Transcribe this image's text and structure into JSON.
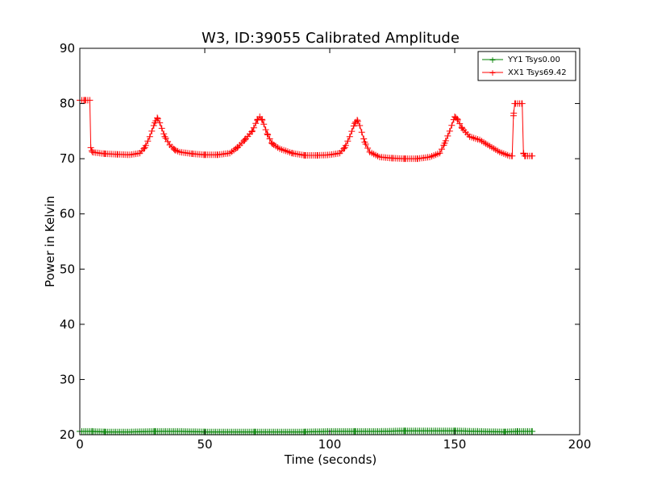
{
  "chart_data": {
    "type": "line",
    "title": "W3, ID:39055 Calibrated Amplitude",
    "xlabel": "Time (seconds)",
    "ylabel": "Power in Kelvin",
    "xlim": [
      0,
      200
    ],
    "ylim": [
      20,
      90
    ],
    "xticks": [
      "0",
      "50",
      "100",
      "150",
      "200"
    ],
    "yticks": [
      "20",
      "30",
      "40",
      "50",
      "60",
      "70",
      "80",
      "90"
    ],
    "grid": false,
    "legend_position": "top-right",
    "series": [
      {
        "name": "YY1 Tsys0.00",
        "color": "#008000",
        "marker": "+",
        "points": [
          [
            0,
            20.6
          ],
          [
            5,
            20.6
          ],
          [
            10,
            20.5
          ],
          [
            20,
            20.5
          ],
          [
            30,
            20.6
          ],
          [
            40,
            20.6
          ],
          [
            50,
            20.5
          ],
          [
            60,
            20.5
          ],
          [
            70,
            20.5
          ],
          [
            80,
            20.5
          ],
          [
            90,
            20.5
          ],
          [
            100,
            20.6
          ],
          [
            110,
            20.6
          ],
          [
            120,
            20.6
          ],
          [
            130,
            20.7
          ],
          [
            140,
            20.7
          ],
          [
            150,
            20.7
          ],
          [
            160,
            20.6
          ],
          [
            170,
            20.5
          ],
          [
            175,
            20.6
          ],
          [
            181,
            20.6
          ]
        ]
      },
      {
        "name": "XX1 Tsys69.42",
        "color": "#ff0000",
        "marker": "+",
        "points": [
          [
            0,
            80.6
          ],
          [
            2,
            80.6
          ],
          [
            4,
            80.6
          ],
          [
            4.4,
            72.0
          ],
          [
            5,
            71.2
          ],
          [
            8,
            71.0
          ],
          [
            10,
            70.9
          ],
          [
            15,
            70.8
          ],
          [
            20,
            70.7
          ],
          [
            24,
            71.0
          ],
          [
            26,
            72.0
          ],
          [
            28,
            74.0
          ],
          [
            30,
            76.5
          ],
          [
            31,
            77.4
          ],
          [
            32,
            76.5
          ],
          [
            34,
            74.0
          ],
          [
            36,
            72.5
          ],
          [
            38,
            71.6
          ],
          [
            40,
            71.2
          ],
          [
            45,
            70.9
          ],
          [
            50,
            70.7
          ],
          [
            55,
            70.7
          ],
          [
            60,
            71.0
          ],
          [
            63,
            72.0
          ],
          [
            66,
            73.4
          ],
          [
            69,
            75.0
          ],
          [
            71,
            77.0
          ],
          [
            72,
            77.6
          ],
          [
            73,
            77.0
          ],
          [
            75,
            74.5
          ],
          [
            77,
            72.7
          ],
          [
            80,
            71.8
          ],
          [
            85,
            71.0
          ],
          [
            90,
            70.6
          ],
          [
            95,
            70.6
          ],
          [
            100,
            70.7
          ],
          [
            104,
            71.0
          ],
          [
            106,
            72.0
          ],
          [
            108,
            74.0
          ],
          [
            110,
            76.4
          ],
          [
            111,
            77.0
          ],
          [
            112,
            76.0
          ],
          [
            114,
            73.0
          ],
          [
            116,
            71.2
          ],
          [
            120,
            70.3
          ],
          [
            125,
            70.1
          ],
          [
            130,
            70.0
          ],
          [
            135,
            70.0
          ],
          [
            140,
            70.3
          ],
          [
            144,
            71.0
          ],
          [
            146,
            72.8
          ],
          [
            148,
            75.0
          ],
          [
            150,
            77.6
          ],
          [
            151,
            77.2
          ],
          [
            153,
            75.5
          ],
          [
            156,
            74.0
          ],
          [
            160,
            73.4
          ],
          [
            164,
            72.3
          ],
          [
            168,
            71.2
          ],
          [
            172,
            70.5
          ],
          [
            173,
            70.5
          ],
          [
            173.5,
            77.8
          ],
          [
            174,
            80.0
          ],
          [
            176,
            80.0
          ],
          [
            177,
            80.0
          ],
          [
            177.5,
            71.0
          ],
          [
            178,
            70.5
          ],
          [
            181,
            70.5
          ]
        ]
      }
    ]
  }
}
